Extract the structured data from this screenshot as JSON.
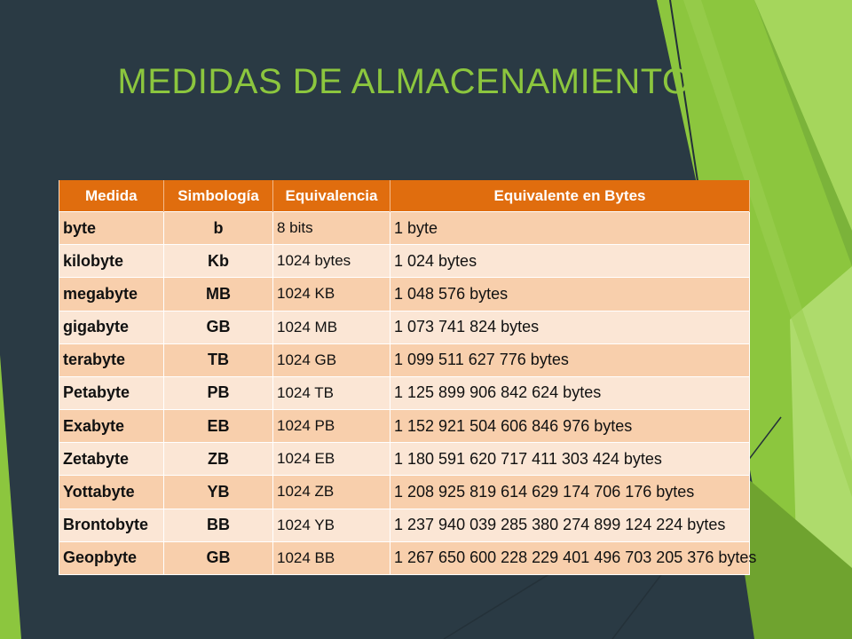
{
  "slide": {
    "title": "MEDIDAS DE ALMACENAMIENTO"
  },
  "colors": {
    "background": "#2a3a44",
    "title": "#8cc63e",
    "header": "#e06d0e",
    "row_odd": "#f8cfac",
    "row_even": "#fbe6d5",
    "accent_green": "#8cc63e"
  },
  "table": {
    "headers": [
      "Medida",
      "Simbología",
      "Equivalencia",
      "Equivalente en Bytes"
    ],
    "rows": [
      {
        "medida": "byte",
        "simbolo": "b",
        "equivalencia": "8 bits",
        "bytes": "1 byte"
      },
      {
        "medida": "kilobyte",
        "simbolo": "Kb",
        "equivalencia": "1024 bytes",
        "bytes": "1 024 bytes"
      },
      {
        "medida": "megabyte",
        "simbolo": "MB",
        "equivalencia": "1024 KB",
        "bytes": "1 048 576 bytes"
      },
      {
        "medida": "gigabyte",
        "simbolo": "GB",
        "equivalencia": "1024 MB",
        "bytes": "1 073 741 824 bytes"
      },
      {
        "medida": "terabyte",
        "simbolo": "TB",
        "equivalencia": "1024 GB",
        "bytes": "1 099 511 627 776 bytes"
      },
      {
        "medida": "Petabyte",
        "simbolo": "PB",
        "equivalencia": "1024 TB",
        "bytes": "1 125 899 906 842 624 bytes"
      },
      {
        "medida": "Exabyte",
        "simbolo": "EB",
        "equivalencia": "1024 PB",
        "bytes": "1 152 921 504 606 846 976 bytes"
      },
      {
        "medida": "Zetabyte",
        "simbolo": "ZB",
        "equivalencia": "1024 EB",
        "bytes": "1 180 591 620 717 411 303 424 bytes"
      },
      {
        "medida": "Yottabyte",
        "simbolo": "YB",
        "equivalencia": "1024 ZB",
        "bytes": "1 208 925 819 614 629 174 706 176 bytes"
      },
      {
        "medida": "Brontobyte",
        "simbolo": "BB",
        "equivalencia": "1024 YB",
        "bytes": "1 237 940 039 285 380 274 899 124 224 bytes"
      },
      {
        "medida": "Geopbyte",
        "simbolo": "GB",
        "equivalencia": "1024 BB",
        "bytes": "1 267 650 600 228 229 401 496 703 205 376 bytes"
      }
    ]
  }
}
